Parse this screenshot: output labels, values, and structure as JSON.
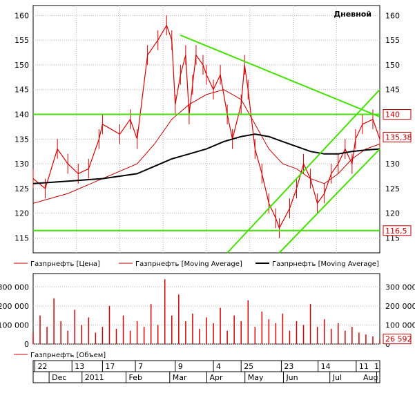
{
  "colors": {
    "background": "#ffffff",
    "frame": "#000000",
    "grid": "#b0b0b0",
    "price": "#d40000",
    "ma_short": "#c00000",
    "ma_long": "#000000",
    "trendline": "#44e000",
    "volume": "#d40000",
    "label_box_stroke": "#c00000"
  },
  "chart_data": [
    {
      "type": "line",
      "panel": "price",
      "period_label": "Дневной",
      "y_ticks": [
        115,
        120,
        125,
        130,
        135,
        140,
        145,
        150,
        155,
        160
      ],
      "ylim": [
        112,
        162
      ],
      "grid": true,
      "legend": [
        {
          "name": "Газпрнефть [Цена]",
          "style": "price"
        },
        {
          "name": "Газпрнефть [Moving Average]",
          "style": "ma_short"
        },
        {
          "name": "Газпрнефть [Moving Average]",
          "style": "ma_long"
        }
      ],
      "price_labels": [
        {
          "text": "140",
          "value": 140
        },
        {
          "text": "135,38",
          "value": 135.38
        },
        {
          "text": "116,5",
          "value": 116.5
        }
      ],
      "trendlines": [
        {
          "name": "resistance",
          "from": [
            0.425,
            156
          ],
          "to": [
            1.0,
            139.5
          ]
        },
        {
          "name": "level-140",
          "from": [
            0.0,
            140
          ],
          "to": [
            1.0,
            140
          ]
        },
        {
          "name": "level-116.5",
          "from": [
            0.0,
            116.5
          ],
          "to": [
            1.0,
            116.5
          ]
        },
        {
          "name": "channel-upper",
          "from": [
            0.56,
            112
          ],
          "to": [
            1.0,
            145
          ]
        },
        {
          "name": "channel-lower",
          "from": [
            0.71,
            112
          ],
          "to": [
            1.0,
            133
          ]
        }
      ],
      "series": [
        {
          "name": "Газпрнефть [Цена]",
          "x": [
            0.0,
            0.035,
            0.07,
            0.1,
            0.13,
            0.16,
            0.19,
            0.2,
            0.25,
            0.28,
            0.3,
            0.33,
            0.36,
            0.385,
            0.4,
            0.41,
            0.425,
            0.44,
            0.45,
            0.46,
            0.47,
            0.49,
            0.5,
            0.52,
            0.54,
            0.56,
            0.575,
            0.6,
            0.61,
            0.62,
            0.64,
            0.66,
            0.68,
            0.7,
            0.71,
            0.74,
            0.76,
            0.78,
            0.8,
            0.82,
            0.84,
            0.86,
            0.88,
            0.9,
            0.92,
            0.93,
            0.95,
            0.98,
            1.0
          ],
          "values": [
            127,
            125,
            133,
            130,
            128,
            129,
            135,
            138,
            136,
            139,
            135,
            152,
            155,
            158,
            155,
            142,
            148,
            152,
            140,
            146,
            152,
            150,
            148,
            145,
            148,
            140,
            135,
            142,
            150,
            145,
            133,
            128,
            122,
            119,
            117,
            121,
            125,
            130,
            127,
            122,
            124,
            128,
            130,
            133,
            130,
            135,
            138,
            139,
            135
          ]
        },
        {
          "name": "Газпрнефть [Moving Average]",
          "x": [
            0.0,
            0.1,
            0.2,
            0.3,
            0.35,
            0.4,
            0.45,
            0.5,
            0.55,
            0.6,
            0.64,
            0.68,
            0.72,
            0.76,
            0.8,
            0.84,
            0.88,
            0.92,
            0.96,
            1.0
          ],
          "values": [
            122,
            124,
            127,
            130,
            134,
            139,
            142,
            144,
            145,
            143,
            138,
            133,
            130,
            129,
            127,
            126,
            128,
            131,
            133,
            134
          ]
        },
        {
          "name": "Газпрнефть [Moving Average]",
          "x": [
            0.0,
            0.1,
            0.2,
            0.3,
            0.35,
            0.4,
            0.45,
            0.5,
            0.55,
            0.6,
            0.64,
            0.68,
            0.72,
            0.76,
            0.8,
            0.84,
            0.88,
            0.92,
            0.96,
            1.0
          ],
          "values": [
            126,
            126.5,
            127,
            128,
            129.5,
            131,
            132,
            133,
            134.5,
            135.5,
            136,
            135.5,
            134.5,
            133.5,
            132.5,
            132,
            132,
            132.5,
            132.8,
            133
          ]
        }
      ]
    },
    {
      "type": "bar",
      "panel": "volume",
      "y_ticks": [
        0,
        100000,
        200000,
        300000
      ],
      "y_tick_labels": [
        "0",
        "100 000",
        "200 000",
        "300 000"
      ],
      "ylim": [
        0,
        370000
      ],
      "grid": true,
      "legend": [
        {
          "name": "Газпрнефть [Объем]",
          "style": "volume"
        }
      ],
      "last_value_label": {
        "text": "26 592",
        "value": 26592
      },
      "series": [
        {
          "name": "Газпрнефть [Объем]",
          "x": [
            0.0,
            0.02,
            0.04,
            0.06,
            0.08,
            0.1,
            0.12,
            0.14,
            0.16,
            0.18,
            0.2,
            0.22,
            0.24,
            0.26,
            0.28,
            0.3,
            0.32,
            0.34,
            0.36,
            0.38,
            0.4,
            0.42,
            0.44,
            0.46,
            0.48,
            0.5,
            0.52,
            0.54,
            0.56,
            0.58,
            0.6,
            0.62,
            0.64,
            0.66,
            0.68,
            0.7,
            0.72,
            0.74,
            0.76,
            0.78,
            0.8,
            0.82,
            0.84,
            0.86,
            0.88,
            0.9,
            0.92,
            0.94,
            0.96,
            0.98,
            1.0
          ],
          "values": [
            60000,
            150000,
            90000,
            240000,
            120000,
            70000,
            180000,
            100000,
            140000,
            60000,
            90000,
            200000,
            80000,
            150000,
            70000,
            120000,
            90000,
            210000,
            100000,
            340000,
            150000,
            260000,
            120000,
            160000,
            80000,
            140000,
            110000,
            190000,
            70000,
            150000,
            120000,
            230000,
            90000,
            170000,
            130000,
            110000,
            160000,
            70000,
            120000,
            100000,
            210000,
            90000,
            130000,
            80000,
            110000,
            70000,
            90000,
            60000,
            50000,
            40000,
            26592
          ]
        }
      ]
    }
  ],
  "time_axis": {
    "day_labels": [
      {
        "text": "22",
        "pos": 0.005
      },
      {
        "text": "13",
        "pos": 0.112
      },
      {
        "text": "17",
        "pos": 0.2
      },
      {
        "text": "7",
        "pos": 0.295
      },
      {
        "text": "9",
        "pos": 0.41
      },
      {
        "text": "4",
        "pos": 0.52
      },
      {
        "text": "25",
        "pos": 0.6
      },
      {
        "text": "23",
        "pos": 0.716
      },
      {
        "text": "14",
        "pos": 0.822
      },
      {
        "text": "11",
        "pos": 0.932
      },
      {
        "text": "1",
        "pos": 1.0
      }
    ],
    "month_labels": [
      {
        "text": "Dec",
        "pos": 0.05
      },
      {
        "text": "2011",
        "pos": 0.145
      },
      {
        "text": "Feb",
        "pos": 0.272
      },
      {
        "text": "Mar",
        "pos": 0.398
      },
      {
        "text": "Apr",
        "pos": 0.505
      },
      {
        "text": "May",
        "pos": 0.615
      },
      {
        "text": "Jun",
        "pos": 0.726
      },
      {
        "text": "Jul",
        "pos": 0.86
      },
      {
        "text": "Aug",
        "pos": 0.995
      }
    ]
  }
}
